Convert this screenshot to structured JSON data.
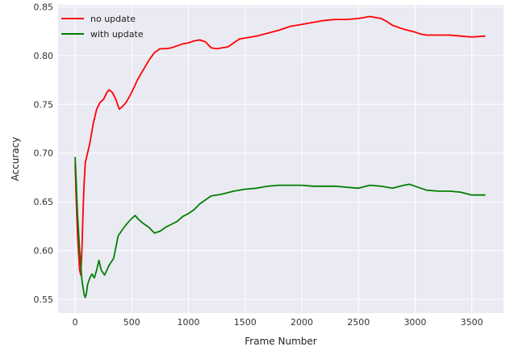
{
  "chart_data": {
    "type": "line",
    "title": "",
    "xlabel": "Frame Number",
    "ylabel": "Accuracy",
    "xlim": [
      -150,
      3780
    ],
    "ylim": [
      0.536,
      0.852
    ],
    "xticks": [
      0,
      500,
      1000,
      1500,
      2000,
      2500,
      3000,
      3500
    ],
    "xtick_labels": [
      "0",
      "500",
      "1000",
      "1500",
      "2000",
      "2500",
      "3000",
      "3500"
    ],
    "yticks": [
      0.55,
      0.6,
      0.65,
      0.7,
      0.75,
      0.8,
      0.85
    ],
    "ytick_labels": [
      "0.55",
      "0.60",
      "0.65",
      "0.70",
      "0.75",
      "0.80",
      "0.85"
    ],
    "grid": true,
    "legend_position": "top-left",
    "background_color": "#eaeaf2",
    "series": [
      {
        "name": "no update",
        "color": "#ff0000",
        "points": [
          [
            0,
            0.69
          ],
          [
            10,
            0.65
          ],
          [
            20,
            0.62
          ],
          [
            30,
            0.598
          ],
          [
            40,
            0.58
          ],
          [
            50,
            0.575
          ],
          [
            60,
            0.6
          ],
          [
            70,
            0.64
          ],
          [
            80,
            0.67
          ],
          [
            90,
            0.69
          ],
          [
            110,
            0.7
          ],
          [
            130,
            0.71
          ],
          [
            160,
            0.73
          ],
          [
            190,
            0.745
          ],
          [
            220,
            0.752
          ],
          [
            250,
            0.755
          ],
          [
            280,
            0.762
          ],
          [
            300,
            0.765
          ],
          [
            330,
            0.762
          ],
          [
            360,
            0.755
          ],
          [
            390,
            0.745
          ],
          [
            420,
            0.748
          ],
          [
            450,
            0.752
          ],
          [
            480,
            0.758
          ],
          [
            510,
            0.765
          ],
          [
            550,
            0.775
          ],
          [
            600,
            0.785
          ],
          [
            650,
            0.795
          ],
          [
            700,
            0.803
          ],
          [
            750,
            0.807
          ],
          [
            800,
            0.807
          ],
          [
            850,
            0.808
          ],
          [
            900,
            0.81
          ],
          [
            950,
            0.812
          ],
          [
            1000,
            0.813
          ],
          [
            1050,
            0.815
          ],
          [
            1100,
            0.816
          ],
          [
            1150,
            0.814
          ],
          [
            1200,
            0.808
          ],
          [
            1250,
            0.807
          ],
          [
            1300,
            0.808
          ],
          [
            1350,
            0.809
          ],
          [
            1400,
            0.813
          ],
          [
            1450,
            0.817
          ],
          [
            1500,
            0.818
          ],
          [
            1600,
            0.82
          ],
          [
            1700,
            0.823
          ],
          [
            1800,
            0.826
          ],
          [
            1900,
            0.83
          ],
          [
            2000,
            0.832
          ],
          [
            2100,
            0.834
          ],
          [
            2200,
            0.836
          ],
          [
            2300,
            0.837
          ],
          [
            2400,
            0.837
          ],
          [
            2500,
            0.838
          ],
          [
            2600,
            0.84
          ],
          [
            2700,
            0.838
          ],
          [
            2750,
            0.835
          ],
          [
            2800,
            0.831
          ],
          [
            2900,
            0.827
          ],
          [
            3000,
            0.824
          ],
          [
            3050,
            0.822
          ],
          [
            3100,
            0.821
          ],
          [
            3200,
            0.821
          ],
          [
            3300,
            0.821
          ],
          [
            3400,
            0.82
          ],
          [
            3500,
            0.819
          ],
          [
            3620,
            0.82
          ]
        ]
      },
      {
        "name": "with update",
        "color": "#008000",
        "points": [
          [
            0,
            0.696
          ],
          [
            10,
            0.67
          ],
          [
            20,
            0.64
          ],
          [
            30,
            0.62
          ],
          [
            40,
            0.6
          ],
          [
            50,
            0.585
          ],
          [
            60,
            0.57
          ],
          [
            70,
            0.562
          ],
          [
            80,
            0.555
          ],
          [
            90,
            0.552
          ],
          [
            100,
            0.556
          ],
          [
            110,
            0.565
          ],
          [
            130,
            0.572
          ],
          [
            150,
            0.576
          ],
          [
            170,
            0.572
          ],
          [
            190,
            0.58
          ],
          [
            210,
            0.59
          ],
          [
            230,
            0.58
          ],
          [
            260,
            0.575
          ],
          [
            300,
            0.585
          ],
          [
            340,
            0.592
          ],
          [
            380,
            0.615
          ],
          [
            420,
            0.622
          ],
          [
            460,
            0.628
          ],
          [
            500,
            0.633
          ],
          [
            530,
            0.636
          ],
          [
            560,
            0.632
          ],
          [
            600,
            0.628
          ],
          [
            650,
            0.624
          ],
          [
            700,
            0.618
          ],
          [
            750,
            0.62
          ],
          [
            800,
            0.624
          ],
          [
            850,
            0.627
          ],
          [
            900,
            0.63
          ],
          [
            950,
            0.635
          ],
          [
            1000,
            0.638
          ],
          [
            1050,
            0.642
          ],
          [
            1100,
            0.648
          ],
          [
            1150,
            0.652
          ],
          [
            1200,
            0.656
          ],
          [
            1250,
            0.657
          ],
          [
            1300,
            0.658
          ],
          [
            1400,
            0.661
          ],
          [
            1500,
            0.663
          ],
          [
            1600,
            0.664
          ],
          [
            1700,
            0.666
          ],
          [
            1800,
            0.667
          ],
          [
            1900,
            0.667
          ],
          [
            2000,
            0.667
          ],
          [
            2100,
            0.666
          ],
          [
            2200,
            0.666
          ],
          [
            2300,
            0.666
          ],
          [
            2400,
            0.665
          ],
          [
            2500,
            0.664
          ],
          [
            2600,
            0.667
          ],
          [
            2700,
            0.666
          ],
          [
            2800,
            0.664
          ],
          [
            2900,
            0.667
          ],
          [
            2950,
            0.668
          ],
          [
            3000,
            0.666
          ],
          [
            3100,
            0.662
          ],
          [
            3200,
            0.661
          ],
          [
            3300,
            0.661
          ],
          [
            3400,
            0.66
          ],
          [
            3500,
            0.657
          ],
          [
            3620,
            0.657
          ]
        ]
      }
    ]
  }
}
